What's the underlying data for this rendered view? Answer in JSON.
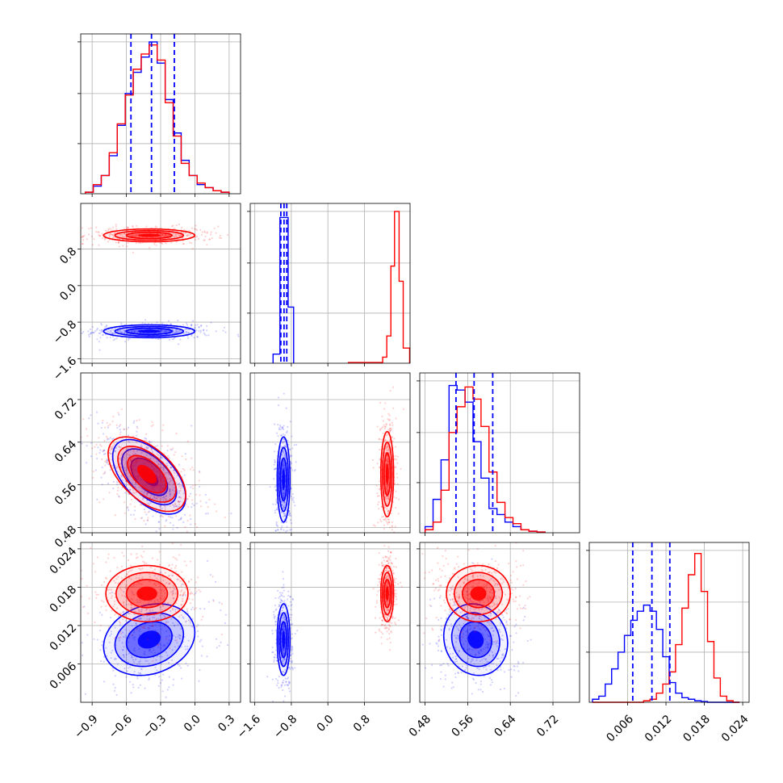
{
  "chart_data": {
    "type": "corner",
    "title": "",
    "parameters": [
      "",
      "",
      "",
      ""
    ],
    "grid": true,
    "series": [
      {
        "color": "#0000ff"
      },
      {
        "color": "#ff0000"
      }
    ],
    "quantile_color": "#0000ff",
    "parameters_info": [
      {
        "range": [
          -1.0,
          0.4
        ],
        "ticks": [
          -0.9,
          -0.6,
          -0.3,
          0.0,
          0.3
        ],
        "tick_labels": [
          "−0.9",
          "−0.6",
          "−0.3",
          "0.0",
          "0.3"
        ],
        "quantiles": [
          -0.56,
          -0.38,
          -0.18
        ],
        "hist": {
          "edges": [
            -0.96,
            -0.89,
            -0.82,
            -0.75,
            -0.68,
            -0.61,
            -0.54,
            -0.47,
            -0.4,
            -0.33,
            -0.26,
            -0.19,
            -0.12,
            -0.05,
            0.02,
            0.09,
            0.16,
            0.23,
            0.3
          ],
          "blue": [
            0.01,
            0.05,
            0.12,
            0.25,
            0.45,
            0.66,
            0.8,
            0.9,
            1.0,
            0.86,
            0.62,
            0.4,
            0.22,
            0.12,
            0.06,
            0.04,
            0.02,
            0.01
          ],
          "red": [
            0.01,
            0.06,
            0.12,
            0.27,
            0.46,
            0.65,
            0.82,
            0.92,
            0.98,
            0.88,
            0.6,
            0.38,
            0.2,
            0.12,
            0.07,
            0.04,
            0.02,
            0.01
          ]
        }
      },
      {
        "range": [
          -1.7,
          1.8
        ],
        "ticks": [
          -1.6,
          -0.8,
          0.0,
          0.8
        ],
        "tick_labels": [
          "−1.6",
          "−0.8",
          "0.0",
          "0.8"
        ],
        "quantiles": [
          -1.03,
          -0.96,
          -0.9
        ],
        "hist": {
          "edges": [
            -1.2,
            -1.05,
            -0.97,
            -0.87,
            -0.75
          ],
          "blue": [
            0.06,
            0.96,
            0.96,
            0.37
          ],
          "red_edges": [
            0.45,
            1.2,
            1.29,
            1.38,
            1.46,
            1.56,
            1.65,
            1.79
          ],
          "red": [
            0.005,
            0.04,
            0.18,
            0.64,
            1.0,
            0.54,
            0.1
          ]
        }
      },
      {
        "range": [
          0.47,
          0.77
        ],
        "ticks": [
          0.48,
          0.56,
          0.64,
          0.72
        ],
        "tick_labels": [
          "0.48",
          "0.56",
          "0.64",
          "0.72"
        ],
        "quantiles": [
          0.538,
          0.572,
          0.607
        ],
        "hist": {
          "edges": [
            0.48,
            0.495,
            0.51,
            0.525,
            0.54,
            0.555,
            0.57,
            0.585,
            0.6,
            0.615,
            0.63,
            0.645,
            0.66,
            0.675,
            0.69,
            0.705
          ],
          "blue": [
            0.04,
            0.22,
            0.48,
            0.97,
            0.94,
            0.86,
            0.6,
            0.36,
            0.16,
            0.12,
            0.07,
            0.04,
            0.02,
            0.01,
            0.005
          ],
          "red": [
            0.02,
            0.07,
            0.28,
            0.66,
            0.83,
            0.96,
            0.88,
            0.7,
            0.4,
            0.2,
            0.1,
            0.06,
            0.02,
            0.01,
            0.005
          ]
        }
      },
      {
        "range": [
          0.0,
          0.025
        ],
        "ticks": [
          0.006,
          0.012,
          0.018,
          0.024
        ],
        "tick_labels": [
          "0.006",
          "0.012",
          "0.018",
          "0.024"
        ],
        "quantiles": [
          0.0068,
          0.0098,
          0.0126
        ],
        "hist": {
          "edges": [
            0.0005,
            0.0015,
            0.0025,
            0.0035,
            0.0045,
            0.0055,
            0.0065,
            0.0075,
            0.0085,
            0.0095,
            0.0105,
            0.0115,
            0.0125,
            0.0135,
            0.0145,
            0.0155,
            0.0165,
            0.0175,
            0.0185,
            0.0195,
            0.0205,
            0.0215,
            0.0225,
            0.0235
          ],
          "blue": [
            0.02,
            0.04,
            0.12,
            0.22,
            0.33,
            0.44,
            0.54,
            0.6,
            0.64,
            0.6,
            0.48,
            0.3,
            0.13,
            0.06,
            0.03,
            0.02,
            0.01,
            0.005,
            0.0,
            0.0,
            0.0,
            0.0,
            0.0
          ],
          "red": [
            0.0,
            0.0,
            0.0,
            0.0,
            0.0,
            0.0,
            0.0,
            0.0,
            0.01,
            0.02,
            0.06,
            0.12,
            0.2,
            0.38,
            0.62,
            0.84,
            0.98,
            0.73,
            0.4,
            0.16,
            0.04,
            0.01,
            0.0
          ]
        }
      }
    ],
    "pairs": [
      {
        "i": 1,
        "j": 0,
        "blue": {
          "mx": -0.4,
          "my": -1.0,
          "sx": 0.2,
          "sy": 0.07,
          "rho": 0.0
        },
        "red": {
          "mx": -0.4,
          "my": 1.1,
          "sx": 0.2,
          "sy": 0.07,
          "rho": 0.0
        }
      },
      {
        "i": 2,
        "j": 0,
        "blue": {
          "mx": -0.4,
          "my": 0.575,
          "sx": 0.16,
          "sy": 0.035,
          "rho": -0.55
        },
        "red": {
          "mx": -0.42,
          "my": 0.58,
          "sx": 0.17,
          "sy": 0.035,
          "rho": -0.55
        }
      },
      {
        "i": 2,
        "j": 1,
        "blue": {
          "mx": -0.97,
          "my": 0.57,
          "sx": 0.07,
          "sy": 0.04,
          "rho": 0.0
        },
        "red": {
          "mx": 1.3,
          "my": 0.58,
          "sx": 0.07,
          "sy": 0.04,
          "rho": 0.0
        }
      },
      {
        "i": 3,
        "j": 0,
        "blue": {
          "mx": -0.4,
          "my": 0.0098,
          "sx": 0.2,
          "sy": 0.0028,
          "rho": 0.2
        },
        "red": {
          "mx": -0.42,
          "my": 0.017,
          "sx": 0.18,
          "sy": 0.0022,
          "rho": 0.0
        }
      },
      {
        "i": 3,
        "j": 1,
        "blue": {
          "mx": -0.97,
          "my": 0.0098,
          "sx": 0.07,
          "sy": 0.0028,
          "rho": 0.0
        },
        "red": {
          "mx": 1.3,
          "my": 0.017,
          "sx": 0.07,
          "sy": 0.0022,
          "rho": 0.0
        }
      },
      {
        "i": 3,
        "j": 2,
        "blue": {
          "mx": 0.575,
          "my": 0.0098,
          "sx": 0.03,
          "sy": 0.0028,
          "rho": -0.1
        },
        "red": {
          "mx": 0.58,
          "my": 0.017,
          "sx": 0.03,
          "sy": 0.0022,
          "rho": 0.0
        }
      }
    ]
  }
}
